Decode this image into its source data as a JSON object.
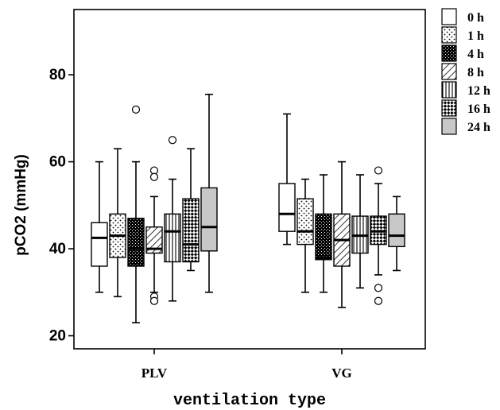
{
  "chart_data": {
    "type": "boxplot",
    "xlabel": "ventilation type",
    "ylabel": "pCO2 (mmHg)",
    "ylim": [
      17,
      95
    ],
    "yticks": [
      20,
      40,
      60,
      80
    ],
    "grid": false,
    "legend_position": "right",
    "categories": [
      "PLV",
      "VG"
    ],
    "series": [
      {
        "name": "0 h",
        "pattern": "white",
        "boxes": [
          {
            "min": 30,
            "q1": 36,
            "median": 42.5,
            "q3": 46,
            "max": 60,
            "outliers": []
          },
          {
            "min": 41,
            "q1": 44,
            "median": 48,
            "q3": 55,
            "max": 71,
            "outliers": []
          }
        ]
      },
      {
        "name": "1 h",
        "pattern": "dots",
        "boxes": [
          {
            "min": 29,
            "q1": 38,
            "median": 43,
            "q3": 48,
            "max": 63,
            "outliers": []
          },
          {
            "min": 30,
            "q1": 41,
            "median": 44,
            "q3": 51.5,
            "max": 56,
            "outliers": []
          }
        ]
      },
      {
        "name": "4 h",
        "pattern": "dense-dark",
        "boxes": [
          {
            "min": 23,
            "q1": 36,
            "median": 40,
            "q3": 47,
            "max": 60,
            "outliers": [
              72
            ]
          },
          {
            "min": 30,
            "q1": 37.5,
            "median": 38,
            "q3": 48,
            "max": 57,
            "outliers": []
          }
        ]
      },
      {
        "name": "8 h",
        "pattern": "diagonal",
        "boxes": [
          {
            "min": 30,
            "q1": 39,
            "median": 40,
            "q3": 45,
            "max": 52,
            "outliers": [
              58,
              56.5,
              29,
              28
            ]
          },
          {
            "min": 26.5,
            "q1": 36,
            "median": 42,
            "q3": 48,
            "max": 60,
            "outliers": []
          }
        ]
      },
      {
        "name": "12 h",
        "pattern": "vertical",
        "boxes": [
          {
            "min": 28,
            "q1": 37,
            "median": 44,
            "q3": 48,
            "max": 56,
            "outliers": [
              65
            ]
          },
          {
            "min": 31,
            "q1": 39,
            "median": 43,
            "q3": 47.5,
            "max": 57,
            "outliers": []
          }
        ]
      },
      {
        "name": "16 h",
        "pattern": "checker",
        "boxes": [
          {
            "min": 35,
            "q1": 37,
            "median": 41,
            "q3": 51.5,
            "max": 63,
            "outliers": []
          },
          {
            "min": 34,
            "q1": 41,
            "median": 44,
            "q3": 47.5,
            "max": 55,
            "outliers": [
              58,
              31,
              28
            ]
          }
        ]
      },
      {
        "name": "24 h",
        "pattern": "gray",
        "boxes": [
          {
            "min": 30,
            "q1": 39.5,
            "median": 45,
            "q3": 54,
            "max": 75.5,
            "outliers": []
          },
          {
            "min": 35,
            "q1": 40.5,
            "median": 43,
            "q3": 48,
            "max": 52,
            "outliers": []
          }
        ]
      }
    ]
  }
}
